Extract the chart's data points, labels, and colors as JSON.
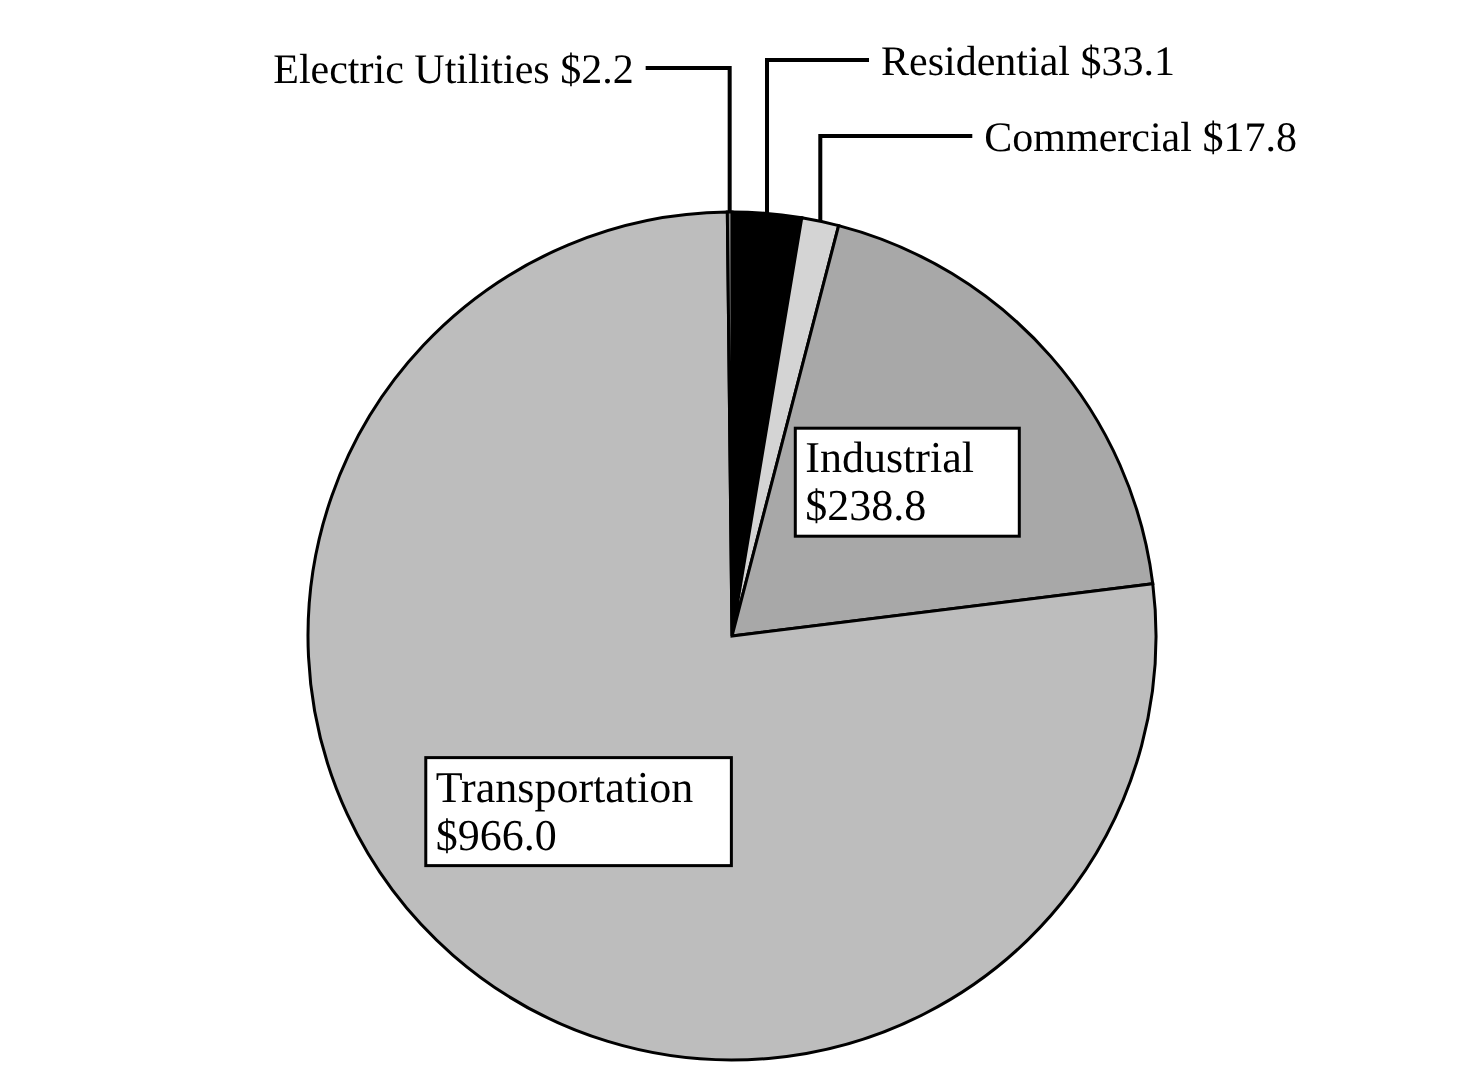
{
  "chart_data": {
    "type": "pie",
    "categories": [
      "Residential",
      "Commercial",
      "Industrial",
      "Transportation",
      "Electric Utilities"
    ],
    "values": [
      33.1,
      17.8,
      238.8,
      966.0,
      2.2
    ],
    "value_labels": [
      "$33.1",
      "$17.8",
      "$238.8",
      "$966.0",
      "$2.2"
    ],
    "colors": [
      "#000000",
      "#d4d4d4",
      "#a8a8a8",
      "#bdbdbd",
      "#8a8a8a"
    ]
  }
}
